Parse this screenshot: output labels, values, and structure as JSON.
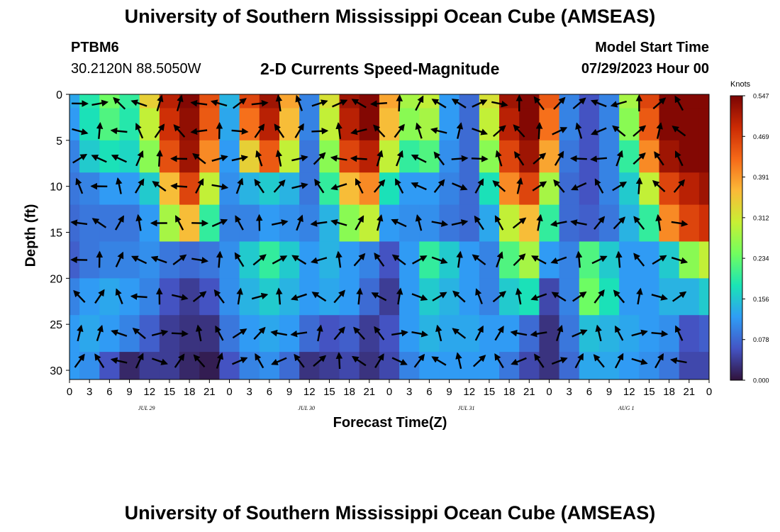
{
  "page": {
    "title": "University of Southern Mississippi Ocean Cube (AMSEAS)",
    "bottom_title": "University of Southern Mississippi Ocean Cube (AMSEAS)",
    "station": "PTBM6",
    "coordinates": "30.2120N  88.5050W",
    "subtitle": "2-D Currents Speed-Magnitude",
    "model_start_label": "Model Start Time",
    "model_start_value": "07/29/2023 Hour 00"
  },
  "colors": {
    "colormap": [
      "#30123b",
      "#4454c4",
      "#2f9df5",
      "#1ae4b6",
      "#71fe5f",
      "#c8ef34",
      "#fbb938",
      "#f56918",
      "#cb2a04",
      "#7a0403"
    ],
    "arrow": "#000000"
  },
  "chart_data": {
    "type": "heatmap",
    "xlabel": "Forecast Time(Z)",
    "ylabel": "Depth (ft)",
    "x_tick_labels": [
      "0",
      "3",
      "6",
      "9",
      "12",
      "15",
      "18",
      "21",
      "0",
      "3",
      "6",
      "9",
      "12",
      "15",
      "18",
      "21",
      "0",
      "3",
      "6",
      "9",
      "12",
      "15",
      "18",
      "21",
      "0",
      "3",
      "6",
      "9",
      "12",
      "15",
      "18",
      "21",
      "0"
    ],
    "day_labels": [
      "JUL 29",
      "JUL 30",
      "JUL 31",
      "AUG 1"
    ],
    "y_ticks": [
      0,
      5,
      10,
      15,
      20,
      25,
      30
    ],
    "ylim": [
      0,
      31
    ],
    "x_range_hours": [
      0,
      96
    ],
    "colorbar": {
      "unit": "Knots",
      "ticks": [
        "0.547",
        "0.469",
        "0.391",
        "0.312",
        "0.234",
        "0.156",
        "0.078",
        "0.000"
      ],
      "range": [
        0,
        0.547
      ]
    },
    "depths_ft": [
      0,
      3,
      7,
      10,
      14,
      18,
      22,
      26,
      30
    ],
    "times_h": [
      0,
      3,
      6,
      9,
      12,
      15,
      18,
      21,
      24,
      27,
      30,
      33,
      36,
      39,
      42,
      45,
      48,
      51,
      54,
      57,
      60,
      63,
      66,
      69,
      72,
      75,
      78,
      81,
      84,
      87,
      90,
      93,
      96
    ],
    "speed_knots": [
      [
        0.13,
        0.19,
        0.24,
        0.2,
        0.34,
        0.5,
        0.54,
        0.45,
        0.14,
        0.46,
        0.52,
        0.38,
        0.1,
        0.32,
        0.52,
        0.54,
        0.38,
        0.28,
        0.3,
        0.12,
        0.08,
        0.32,
        0.52,
        0.54,
        0.44,
        0.1,
        0.06,
        0.1,
        0.28,
        0.46,
        0.54,
        0.54,
        0.54
      ],
      [
        0.12,
        0.18,
        0.22,
        0.19,
        0.3,
        0.48,
        0.53,
        0.44,
        0.13,
        0.42,
        0.5,
        0.36,
        0.1,
        0.3,
        0.5,
        0.54,
        0.36,
        0.26,
        0.28,
        0.12,
        0.08,
        0.3,
        0.5,
        0.54,
        0.42,
        0.1,
        0.06,
        0.1,
        0.26,
        0.44,
        0.54,
        0.54,
        0.54
      ],
      [
        0.1,
        0.16,
        0.18,
        0.17,
        0.26,
        0.45,
        0.52,
        0.4,
        0.12,
        0.34,
        0.44,
        0.3,
        0.09,
        0.26,
        0.46,
        0.5,
        0.3,
        0.2,
        0.22,
        0.11,
        0.08,
        0.26,
        0.46,
        0.52,
        0.38,
        0.09,
        0.06,
        0.1,
        0.2,
        0.4,
        0.52,
        0.54,
        0.54
      ],
      [
        0.09,
        0.1,
        0.12,
        0.12,
        0.16,
        0.36,
        0.46,
        0.3,
        0.11,
        0.14,
        0.16,
        0.14,
        0.09,
        0.2,
        0.36,
        0.4,
        0.18,
        0.12,
        0.12,
        0.1,
        0.08,
        0.18,
        0.4,
        0.46,
        0.28,
        0.08,
        0.06,
        0.1,
        0.16,
        0.3,
        0.46,
        0.5,
        0.52
      ],
      [
        0.08,
        0.09,
        0.09,
        0.09,
        0.12,
        0.28,
        0.36,
        0.2,
        0.1,
        0.1,
        0.12,
        0.11,
        0.1,
        0.14,
        0.26,
        0.3,
        0.12,
        0.11,
        0.11,
        0.09,
        0.08,
        0.13,
        0.3,
        0.36,
        0.2,
        0.08,
        0.07,
        0.09,
        0.14,
        0.2,
        0.4,
        0.46,
        0.48
      ],
      [
        0.07,
        0.09,
        0.1,
        0.1,
        0.11,
        0.09,
        0.08,
        0.09,
        0.11,
        0.16,
        0.2,
        0.16,
        0.12,
        0.14,
        0.12,
        0.1,
        0.06,
        0.12,
        0.2,
        0.16,
        0.12,
        0.1,
        0.22,
        0.28,
        0.12,
        0.1,
        0.22,
        0.16,
        0.12,
        0.12,
        0.16,
        0.26,
        0.3
      ],
      [
        0.1,
        0.12,
        0.13,
        0.12,
        0.1,
        0.06,
        0.04,
        0.06,
        0.11,
        0.14,
        0.16,
        0.14,
        0.12,
        0.13,
        0.12,
        0.08,
        0.04,
        0.12,
        0.16,
        0.14,
        0.12,
        0.1,
        0.16,
        0.18,
        0.05,
        0.1,
        0.24,
        0.18,
        0.12,
        0.12,
        0.14,
        0.14,
        0.16
      ],
      [
        0.12,
        0.13,
        0.12,
        0.1,
        0.07,
        0.04,
        0.03,
        0.03,
        0.09,
        0.12,
        0.13,
        0.12,
        0.08,
        0.06,
        0.07,
        0.04,
        0.06,
        0.12,
        0.14,
        0.13,
        0.13,
        0.12,
        0.12,
        0.08,
        0.03,
        0.09,
        0.15,
        0.14,
        0.13,
        0.12,
        0.11,
        0.06,
        0.07
      ],
      [
        0.12,
        0.11,
        0.06,
        0.02,
        0.04,
        0.04,
        0.02,
        0.01,
        0.06,
        0.1,
        0.11,
        0.08,
        0.03,
        0.04,
        0.05,
        0.03,
        0.05,
        0.1,
        0.12,
        0.12,
        0.12,
        0.12,
        0.09,
        0.05,
        0.03,
        0.08,
        0.13,
        0.13,
        0.12,
        0.11,
        0.09,
        0.05,
        0.05
      ]
    ]
  }
}
